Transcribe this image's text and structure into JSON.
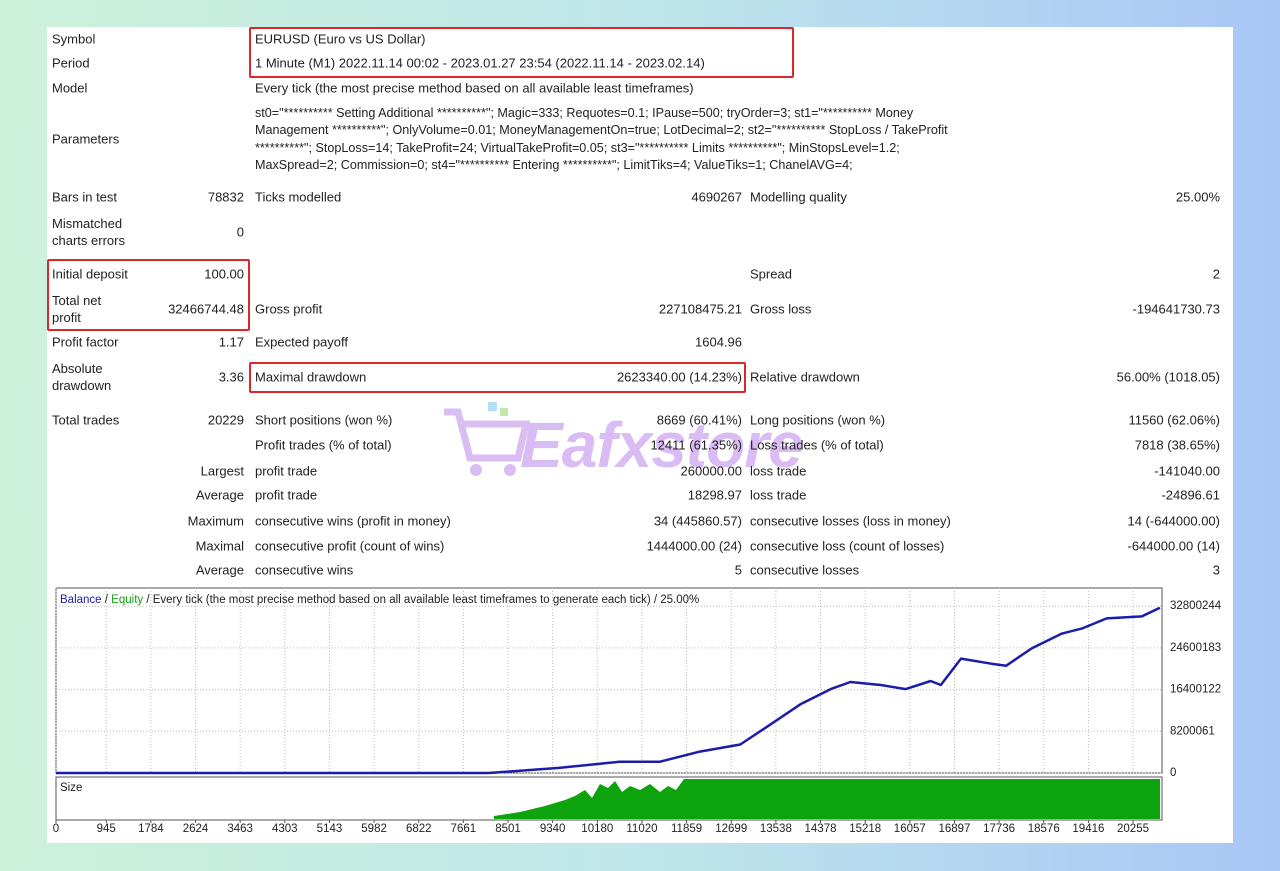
{
  "report": {
    "header_rows": [
      {
        "label": "Symbol",
        "value": "EURUSD (Euro vs US Dollar)"
      },
      {
        "label": "Period",
        "value": "1 Minute (M1) 2022.11.14 00:02 - 2023.01.27 23:54 (2022.11.14 - 2023.02.14)"
      },
      {
        "label": "Model",
        "value": "Every tick (the most precise method based on all available least timeframes)"
      }
    ],
    "parameters": {
      "label": "Parameters",
      "lines": [
        "st0=\"********** Setting Additional **********\"; Magic=333; Requotes=0.1; IPause=500; tryOrder=3; st1=\"********** Money",
        "Management **********\"; OnlyVolume=0.01; MoneyManagementOn=true; LotDecimal=2; st2=\"********** StopLoss / TakeProfit",
        "**********\"; StopLoss=14; TakeProfit=24; VirtualTakeProfit=0.05; st3=\"********** Limits **********\"; MinStopsLevel=1.2;",
        "MaxSpread=2; Commission=0; st4=\"********** Entering **********\"; LimitTiks=4; ValueTiks=1; ChanelAVG=4;"
      ]
    },
    "stats": [
      [
        "Bars in test",
        "78832",
        "Ticks modelled",
        "4690267",
        "Modelling quality",
        "25.00%"
      ],
      [
        [
          "Mismatched",
          "charts errors"
        ],
        "0",
        null,
        null,
        null,
        null
      ],
      [
        "Initial deposit",
        "100.00",
        null,
        null,
        "Spread",
        "2"
      ],
      [
        [
          "Total net",
          "profit"
        ],
        "32466744.48",
        "Gross profit",
        "227108475.21",
        "Gross loss",
        "-194641730.73"
      ],
      [
        "Profit factor",
        "1.17",
        "Expected payoff",
        "1604.96",
        null,
        null
      ],
      [
        [
          "Absolute",
          "drawdown"
        ],
        "3.36",
        "Maximal drawdown",
        "2623340.00 (14.23%)",
        "Relative drawdown",
        "56.00% (1018.05)"
      ],
      [
        "Total trades",
        "20229",
        "Short positions (won %)",
        "8669 (60.41%)",
        "Long positions (won %)",
        "11560 (62.06%)"
      ],
      [
        null,
        null,
        "Profit trades (% of total)",
        "12411 (61.35%)",
        "Loss trades (% of total)",
        "7818 (38.65%)"
      ],
      [
        "Largest",
        null,
        "profit trade",
        "260000.00",
        "loss trade",
        "-141040.00"
      ],
      [
        "Average",
        null,
        "profit trade",
        "18298.97",
        "loss trade",
        "-24896.61"
      ],
      [
        "Maximum",
        null,
        "consecutive wins (profit in money)",
        "34 (445860.57)",
        "consecutive losses (loss in money)",
        "14 (-644000.00)"
      ],
      [
        "Maximal",
        null,
        "consecutive profit (count of wins)",
        "1444000.00 (24)",
        "consecutive loss (count of losses)",
        "-644000.00 (14)"
      ],
      [
        "Average",
        null,
        "consecutive wins",
        "5",
        "consecutive losses",
        "3"
      ]
    ]
  },
  "watermark": "Eafxstore",
  "chart": {
    "type": "line",
    "series": [
      {
        "name": "Balance",
        "color": "#1c1ca8",
        "x": [
          0,
          8140,
          9460,
          10600,
          11350,
          12110,
          12870,
          13430,
          14000,
          14570,
          14940,
          15510,
          15980,
          16450,
          16640,
          17020,
          17590,
          17870,
          18350,
          18910,
          19290,
          19760,
          20420,
          20760
        ],
        "values": [
          100,
          100,
          1000000,
          2200000,
          2200000,
          4200000,
          5600000,
          9500000,
          13500000,
          16500000,
          17900000,
          17300000,
          16500000,
          18100000,
          17300000,
          22500000,
          21500000,
          21100000,
          24500000,
          27400000,
          28400000,
          30400000,
          30800000,
          32500000
        ]
      }
    ],
    "equity_label": {
      "text": "Equity",
      "color": "#16a016"
    },
    "separator": "/",
    "subtitle": "/ Every tick (the most precise method based on all available least timeframes to generate each tick) / 25.00%",
    "size_label": "Size",
    "xlim": [
      0,
      20800
    ],
    "xticks": [
      0,
      945,
      1784,
      2624,
      3463,
      4303,
      5143,
      5982,
      6822,
      7661,
      8501,
      9340,
      10180,
      11020,
      11859,
      12699,
      13538,
      14378,
      15218,
      16057,
      16897,
      17736,
      18576,
      19416,
      20255
    ],
    "ylim": [
      0,
      36380000
    ],
    "yticks": [
      0,
      8200061,
      16400122,
      24600183,
      32800244
    ],
    "grid": true
  }
}
